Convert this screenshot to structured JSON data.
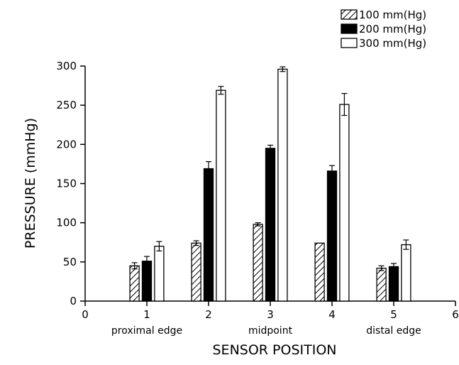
{
  "chart_data": {
    "type": "bar",
    "title": "",
    "xlabel": "SENSOR POSITION",
    "ylabel": "PRESSURE (mmHg)",
    "xlim": [
      0,
      6
    ],
    "ylim": [
      0,
      300
    ],
    "x_ticks": [
      "0",
      "1",
      "2",
      "3",
      "4",
      "5",
      "6"
    ],
    "y_ticks": [
      "0",
      "50",
      "100",
      "150",
      "200",
      "250",
      "300"
    ],
    "position_labels": [
      {
        "x": 1,
        "text": "proximal edge"
      },
      {
        "x": 3,
        "text": "midpoint"
      },
      {
        "x": 5,
        "text": "distal edge"
      }
    ],
    "x": [
      1,
      2,
      3,
      4,
      5
    ],
    "series": [
      {
        "name": "100 mm(Hg)",
        "fill": "hatched",
        "values": [
          45,
          74,
          98,
          74,
          42
        ],
        "errors": [
          4,
          3,
          2,
          0,
          3
        ]
      },
      {
        "name": "200 mm(Hg)",
        "fill": "#000000",
        "values": [
          51,
          169,
          195,
          166,
          44
        ],
        "errors": [
          6,
          9,
          4,
          7,
          4
        ]
      },
      {
        "name": "300 mm(Hg)",
        "fill": "#ffffff",
        "values": [
          70,
          269,
          296,
          251,
          72
        ],
        "errors": [
          6,
          5,
          3,
          14,
          6
        ]
      }
    ],
    "legend_position": "top-right",
    "grid": false
  }
}
